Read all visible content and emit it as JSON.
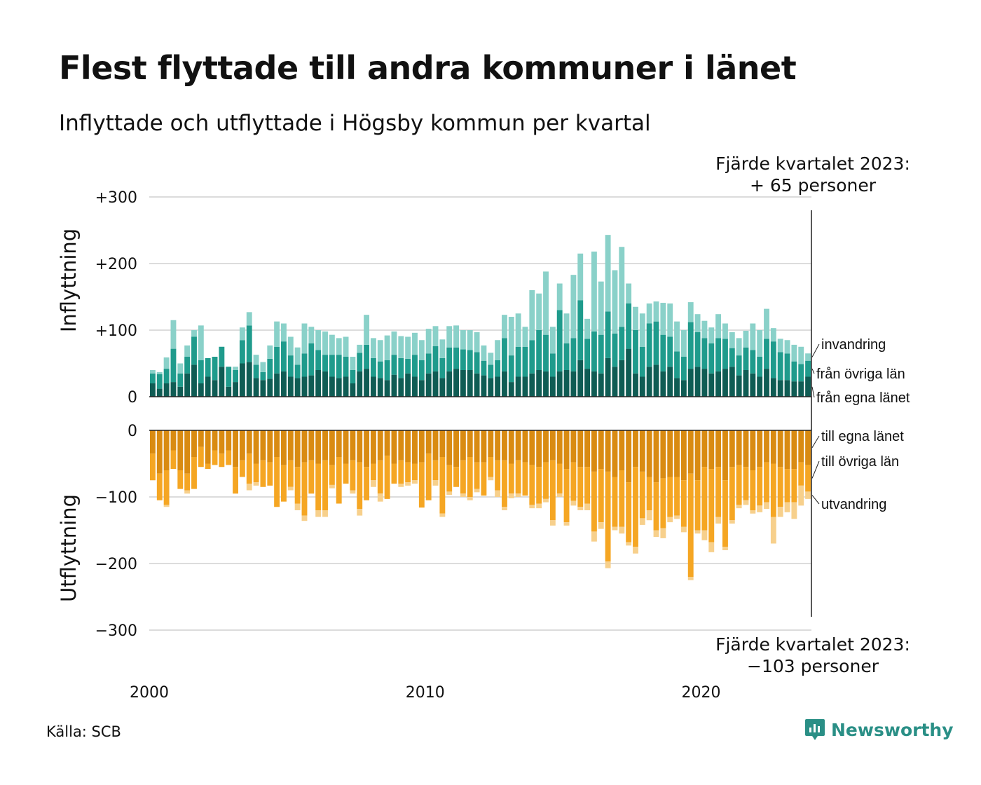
{
  "title": "Flest flyttade till andra kommuner i länet",
  "subtitle": "Inflyttade och utflyttade i Högsby kommun per kvartal",
  "source": "Källa: SCB",
  "brand": "Newsworthy",
  "colors": {
    "in_own": "#0f5c54",
    "in_other": "#1f9b8c",
    "in_immigration": "#8ad1c9",
    "out_own": "#d98b12",
    "out_other": "#f5a623",
    "out_emigration": "#f7d08c",
    "brand": "#2a8f86"
  },
  "callouts": {
    "top_line1": "Fjärde kvartalet 2023:",
    "top_line2": "+ 65 personer",
    "bottom_line1": "Fjärde kvartalet 2023:",
    "bottom_line2": "−103 personer"
  },
  "chart_data": {
    "type": "bar",
    "stacked": true,
    "x_start": "2000 Q1",
    "x_end": "2023 Q4",
    "x_unit": "quarter",
    "xticks": [
      "2000",
      "2010",
      "2020"
    ],
    "xtick_values": [
      2000,
      2010,
      2020
    ],
    "panels": [
      {
        "name": "in",
        "ylabel": "Inflyttning",
        "yticks": [
          "+300",
          "+200",
          "+100",
          "0"
        ],
        "ytick_values": [
          300,
          200,
          100,
          0
        ],
        "ylim": [
          0,
          300
        ],
        "series": [
          {
            "name": "från egna länet",
            "values": [
              20,
              12,
              20,
              22,
              15,
              35,
              48,
              20,
              30,
              25,
              45,
              15,
              22,
              50,
              52,
              28,
              25,
              27,
              35,
              38,
              30,
              28,
              30,
              32,
              40,
              38,
              30,
              28,
              30,
              20,
              38,
              42,
              30,
              28,
              25,
              33,
              28,
              35,
              30,
              25,
              35,
              38,
              28,
              38,
              42,
              40,
              40,
              35,
              32,
              28,
              30,
              38,
              22,
              30,
              30,
              35,
              40,
              38,
              30,
              38,
              40,
              38,
              55,
              42,
              38,
              35,
              58,
              45,
              55,
              72,
              35,
              30,
              45,
              48,
              38,
              45,
              28,
              25,
              42,
              45,
              42,
              35,
              38,
              42,
              45,
              32,
              40,
              35,
              30,
              42,
              28,
              25,
              25,
              23,
              23,
              30
            ]
          },
          {
            "name": "från övriga län",
            "values": [
              15,
              22,
              22,
              50,
              20,
              25,
              42,
              35,
              28,
              35,
              30,
              30,
              18,
              35,
              55,
              20,
              12,
              30,
              40,
              45,
              32,
              20,
              35,
              48,
              30,
              25,
              33,
              35,
              30,
              20,
              28,
              36,
              28,
              25,
              30,
              30,
              30,
              22,
              33,
              30,
              30,
              38,
              30,
              36,
              32,
              31,
              30,
              32,
              22,
              20,
              25,
              50,
              40,
              45,
              45,
              50,
              60,
              55,
              35,
              92,
              40,
              50,
              90,
              45,
              60,
              58,
              70,
              50,
              50,
              68,
              65,
              45,
              65,
              65,
              55,
              45,
              40,
              35,
              70,
              52,
              46,
              45,
              50,
              45,
              28,
              30,
              34,
              35,
              30,
              45,
              55,
              42,
              40,
              30,
              26,
              24
            ]
          },
          {
            "name": "invandring",
            "values": [
              5,
              3,
              17,
              43,
              15,
              17,
              10,
              52,
              0,
              0,
              0,
              0,
              5,
              19,
              20,
              15,
              15,
              20,
              38,
              27,
              28,
              26,
              45,
              25,
              30,
              35,
              30,
              25,
              30,
              20,
              12,
              45,
              30,
              32,
              37,
              35,
              33,
              33,
              33,
              30,
              37,
              30,
              28,
              32,
              33,
              29,
              30,
              30,
              23,
              18,
              30,
              35,
              58,
              50,
              30,
              75,
              55,
              95,
              40,
              40,
              45,
              95,
              70,
              30,
              120,
              80,
              115,
              95,
              120,
              30,
              35,
              50,
              30,
              30,
              48,
              50,
              45,
              40,
              30,
              27,
              26,
              24,
              36,
              23,
              24,
              26,
              25,
              40,
              40,
              45,
              20,
              20,
              20,
              25,
              26,
              11
            ]
          }
        ]
      },
      {
        "name": "out",
        "ylabel": "Utflyttning",
        "yticks": [
          "0",
          "−100",
          "−200",
          "−300"
        ],
        "ytick_values": [
          0,
          -100,
          -200,
          -300
        ],
        "ylim": [
          -300,
          0
        ],
        "series": [
          {
            "name": "till egna länet",
            "values": [
              -35,
              -65,
              -60,
              -30,
              -60,
              -65,
              -40,
              -25,
              -50,
              -30,
              -35,
              -30,
              -55,
              -45,
              -35,
              -50,
              -45,
              -48,
              -40,
              -52,
              -45,
              -55,
              -48,
              -45,
              -50,
              -45,
              -52,
              -40,
              -50,
              -45,
              -48,
              -55,
              -50,
              -45,
              -38,
              -50,
              -45,
              -48,
              -50,
              -48,
              -35,
              -45,
              -40,
              -52,
              -55,
              -45,
              -40,
              -48,
              -48,
              -40,
              -45,
              -45,
              -50,
              -45,
              -48,
              -52,
              -55,
              -48,
              -45,
              -50,
              -58,
              -48,
              -55,
              -55,
              -62,
              -58,
              -62,
              -70,
              -60,
              -78,
              -55,
              -62,
              -70,
              -78,
              -72,
              -70,
              -70,
              -75,
              -65,
              -75,
              -55,
              -58,
              -55,
              -75,
              -55,
              -52,
              -55,
              -60,
              -55,
              -48,
              -50,
              -55,
              -58,
              -58,
              -48,
              -52
            ]
          },
          {
            "name": "till övriga län",
            "values": [
              -40,
              -40,
              -52,
              -28,
              -28,
              -25,
              -48,
              -30,
              -8,
              -22,
              -20,
              -22,
              -40,
              -25,
              -45,
              -28,
              -40,
              -35,
              -75,
              -55,
              -40,
              -55,
              -80,
              -50,
              -70,
              -75,
              -30,
              -70,
              -30,
              -45,
              -70,
              -50,
              -25,
              -50,
              -65,
              -30,
              -35,
              -30,
              -25,
              -68,
              -70,
              -30,
              -85,
              -40,
              -30,
              -50,
              -60,
              -40,
              -50,
              -30,
              -45,
              -70,
              -45,
              -50,
              -50,
              -60,
              -55,
              -55,
              -90,
              -45,
              -80,
              -58,
              -60,
              -55,
              -90,
              -80,
              -135,
              -75,
              -85,
              -90,
              -120,
              -70,
              -50,
              -72,
              -75,
              -60,
              -58,
              -70,
              -155,
              -75,
              -95,
              -110,
              -75,
              -100,
              -80,
              -60,
              -50,
              -60,
              -58,
              -60,
              -80,
              -60,
              -50,
              -50,
              -35,
              -40
            ]
          },
          {
            "name": "utvandring",
            "values": [
              0,
              0,
              -3,
              0,
              0,
              -5,
              0,
              0,
              0,
              0,
              0,
              0,
              0,
              0,
              -10,
              -5,
              0,
              0,
              0,
              0,
              -5,
              -10,
              -8,
              0,
              -10,
              -10,
              -5,
              0,
              0,
              -5,
              -10,
              0,
              -10,
              -12,
              0,
              0,
              -5,
              -5,
              -5,
              0,
              0,
              -8,
              -5,
              -5,
              0,
              -5,
              -5,
              -5,
              0,
              -5,
              -10,
              -5,
              -7,
              -5,
              0,
              -5,
              -7,
              -5,
              -8,
              -5,
              -5,
              -7,
              -5,
              -10,
              -15,
              -10,
              -10,
              -5,
              -10,
              -5,
              -10,
              -10,
              -15,
              -10,
              -15,
              -8,
              -5,
              -8,
              -5,
              -5,
              -15,
              -15,
              -10,
              -5,
              -5,
              -5,
              -7,
              -5,
              -10,
              -10,
              -40,
              -15,
              -15,
              -25,
              -30,
              -11
            ]
          }
        ]
      }
    ],
    "annotation_lines": [
      "invandring",
      "från övriga län",
      "från egna länet",
      "till egna länet",
      "till övriga län",
      "utvandring"
    ],
    "grid": true
  }
}
